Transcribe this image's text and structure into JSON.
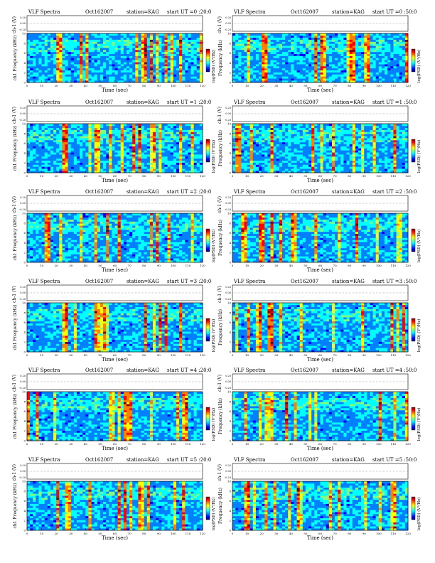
{
  "figure": {
    "panel_title_prefix": "VLF Spectra",
    "date": "Oct162007",
    "station_label": "station=KAG",
    "start_label": "start UT =",
    "ch_label": "ch-1 (V)",
    "freq_label_right": "Frequency (kHz)",
    "freq_label_left": "ch1 Frequency (kHz)",
    "time_label": "Time (sec)",
    "colorbar_label": "log(PSD) (V²/Hz)"
  },
  "panels": [
    {
      "start_time": "0:20:0",
      "start_display": "=0 :20:0"
    },
    {
      "start_time": "0:50:0",
      "start_display": "=0 :50:0"
    },
    {
      "start_time": "1:20:0",
      "start_display": "=1 :20:0"
    },
    {
      "start_time": "1:50:0",
      "start_display": "=1 :50:0"
    },
    {
      "start_time": "2:20:0",
      "start_display": "=2 :20:0"
    },
    {
      "start_time": "2:50:0",
      "start_display": "=2 :50:0"
    },
    {
      "start_time": "3:20:0",
      "start_display": "=3 :20:0"
    },
    {
      "start_time": "3:50:0",
      "start_display": "=3 :50:0"
    },
    {
      "start_time": "4:20:0",
      "start_display": "=4 :20:0"
    },
    {
      "start_time": "4:50:0",
      "start_display": "=4 :50:0"
    },
    {
      "start_time": "5:20:0",
      "start_display": "=5 :20:0"
    },
    {
      "start_time": "5:50:0",
      "start_display": "=5 :50:0"
    }
  ],
  "chart_data": {
    "type": "heatmap",
    "title": "VLF Spectra",
    "xlabel": "Time (sec)",
    "ylabel": "Frequency (kHz)",
    "xlim": [
      0,
      120
    ],
    "ylim": [
      0,
      10
    ],
    "x_ticks": [
      0,
      10,
      20,
      30,
      40,
      50,
      60,
      70,
      80,
      90,
      100,
      110,
      120
    ],
    "y_ticks": [
      0,
      2,
      4,
      6,
      8,
      10
    ],
    "ch_ticks": [
      "-0.20",
      "0.00",
      "0.20"
    ],
    "colormap": [
      "#00007f",
      "#0000ff",
      "#0080ff",
      "#00ffff",
      "#80ff80",
      "#ffff00",
      "#ff8000",
      "#ff0000",
      "#7f0000"
    ],
    "grid": false
  }
}
